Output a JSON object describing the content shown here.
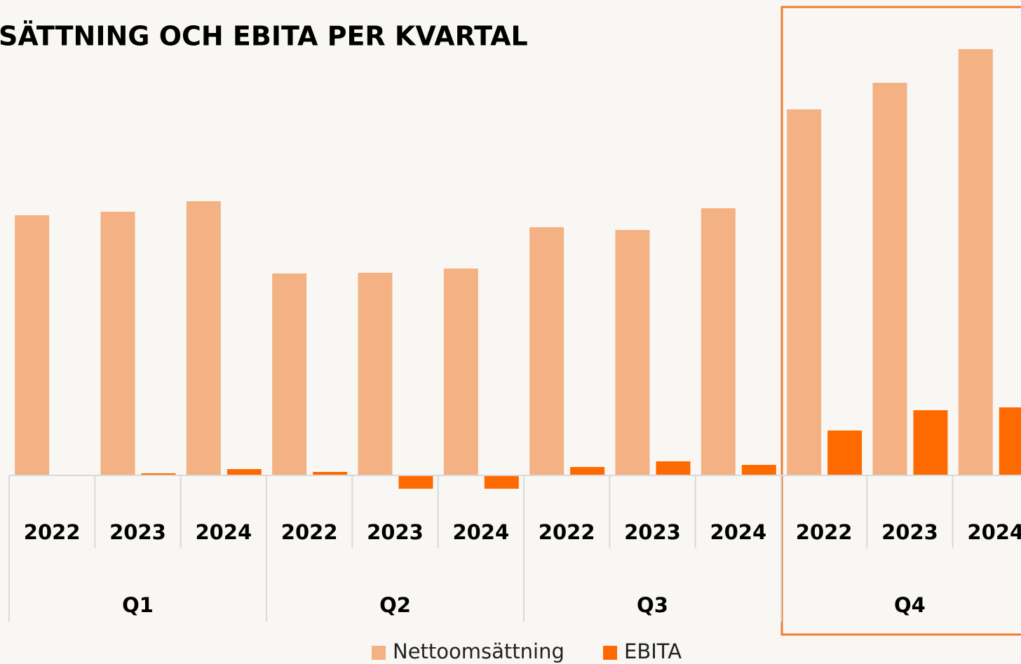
{
  "chart_data": {
    "type": "bar",
    "title": "SÄTTNING OCH EBITA PER KVARTAL",
    "categories": [
      "2022",
      "2023",
      "2024",
      "2022",
      "2023",
      "2024",
      "2022",
      "2023",
      "2024",
      "2022",
      "2023",
      "2024"
    ],
    "groups": [
      "Q1",
      "Q2",
      "Q3",
      "Q4"
    ],
    "series": [
      {
        "name": "Nettoomsättning",
        "color": "#f4b183",
        "values": [
          371,
          376,
          391,
          288,
          289,
          295,
          354,
          350,
          381,
          522,
          560,
          608
        ]
      },
      {
        "name": "EBITA",
        "color": "#ff6a00",
        "values": [
          0,
          3,
          9,
          5,
          -19,
          -19,
          12,
          20,
          15,
          64,
          93,
          97
        ]
      }
    ],
    "ylim": [
      -50,
      618
    ]
  }
}
